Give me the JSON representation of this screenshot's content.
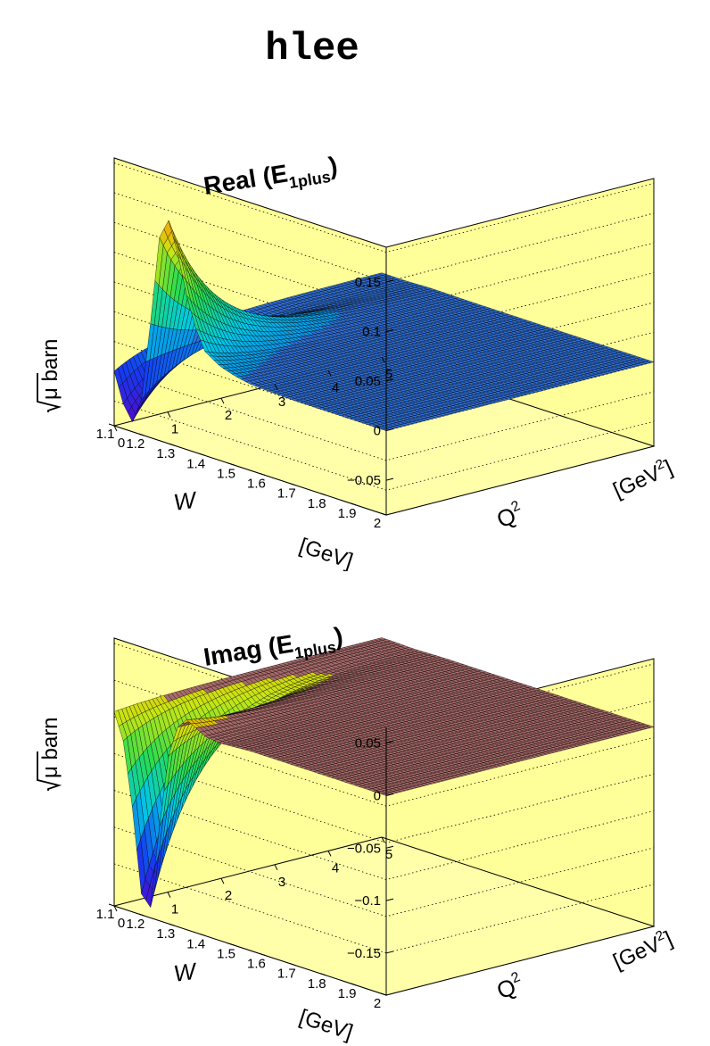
{
  "page_title": "hlee",
  "colors": {
    "frame_fill": "#ffff99",
    "frame_floor": "#ffffaa",
    "real_flat_surface": "#2f6fd6",
    "imag_flat_surface": "#a86a6a"
  },
  "chart_data": [
    {
      "type": "surface",
      "title_main": "Real (E",
      "title_sub": "1plus",
      "title_close": ")",
      "zlabel": "μ barn",
      "xlabel": "W",
      "xunit": "[GeV]",
      "ylabel": "Q",
      "ylabel_sup": "2",
      "yunit": "[GeV",
      "yunit_sup": "2",
      "yunit_close": "]",
      "xlim": [
        1.1,
        2.0
      ],
      "ylim": [
        0,
        5
      ],
      "zlim": [
        -0.085,
        0.185
      ],
      "x_ticks": [
        "1.1",
        "1.2",
        "1.3",
        "1.4",
        "1.5",
        "1.6",
        "1.7",
        "1.8",
        "1.9",
        "2"
      ],
      "y_ticks": [
        "0",
        "1",
        "2",
        "3",
        "4",
        "5"
      ],
      "z_ticks": [
        "0.15",
        "0.1",
        "0.05",
        "0",
        "−0.05"
      ],
      "z_tick_values": [
        0.15,
        0.1,
        0.05,
        0,
        -0.05
      ],
      "q0_profile": {
        "W": [
          1.1,
          1.13,
          1.16,
          1.19,
          1.22,
          1.25,
          1.28,
          1.31,
          1.34,
          1.37,
          1.4,
          1.45,
          1.5,
          1.55,
          1.6,
          1.7,
          1.8,
          1.9,
          2.0
        ],
        "value": [
          -0.03,
          -0.06,
          -0.075,
          -0.05,
          0.03,
          0.12,
          0.14,
          0.11,
          0.07,
          0.04,
          0.02,
          0.01,
          0.005,
          0.002,
          0.001,
          0.0,
          0.0,
          0.0,
          0.0
        ]
      },
      "grid": true,
      "grid_z_values": [
        0.18,
        0.15,
        0.12,
        0.09,
        0.06,
        0.03,
        0.0,
        -0.03,
        -0.06
      ]
    },
    {
      "type": "surface",
      "title_main": "Imag (E",
      "title_sub": "1plus",
      "title_close": ")",
      "zlabel": "μ barn",
      "xlabel": "W",
      "xunit": "[GeV]",
      "ylabel": "Q",
      "ylabel_sup": "2",
      "yunit": "[GeV",
      "yunit_sup": "2",
      "yunit_close": "]",
      "xlim": [
        1.1,
        2.0
      ],
      "ylim": [
        0,
        5
      ],
      "zlim": [
        -0.19,
        0.065
      ],
      "x_ticks": [
        "1.1",
        "1.2",
        "1.3",
        "1.4",
        "1.5",
        "1.6",
        "1.7",
        "1.8",
        "1.9",
        "2"
      ],
      "y_ticks": [
        "0",
        "1",
        "2",
        "3",
        "4",
        "5"
      ],
      "z_ticks": [
        "0.05",
        "0",
        "−0.05",
        "−0.1",
        "−0.15"
      ],
      "z_tick_values": [
        0.05,
        0,
        -0.05,
        -0.1,
        -0.15
      ],
      "q0_profile": {
        "W": [
          1.1,
          1.13,
          1.16,
          1.19,
          1.22,
          1.25,
          1.28,
          1.31,
          1.34,
          1.37,
          1.4,
          1.45,
          1.5,
          1.55,
          1.6,
          1.7,
          1.8,
          1.9,
          2.0
        ],
        "value": [
          -0.005,
          -0.03,
          -0.09,
          -0.17,
          -0.18,
          -0.1,
          -0.03,
          0.0,
          0.01,
          0.005,
          0.0,
          -0.002,
          -0.001,
          0.0,
          0.0,
          0.0,
          0.0,
          0.0,
          0.0
        ]
      },
      "grid": true,
      "grid_z_values": [
        0.06,
        0.025,
        -0.01,
        -0.045,
        -0.08,
        -0.115,
        -0.15
      ]
    }
  ]
}
